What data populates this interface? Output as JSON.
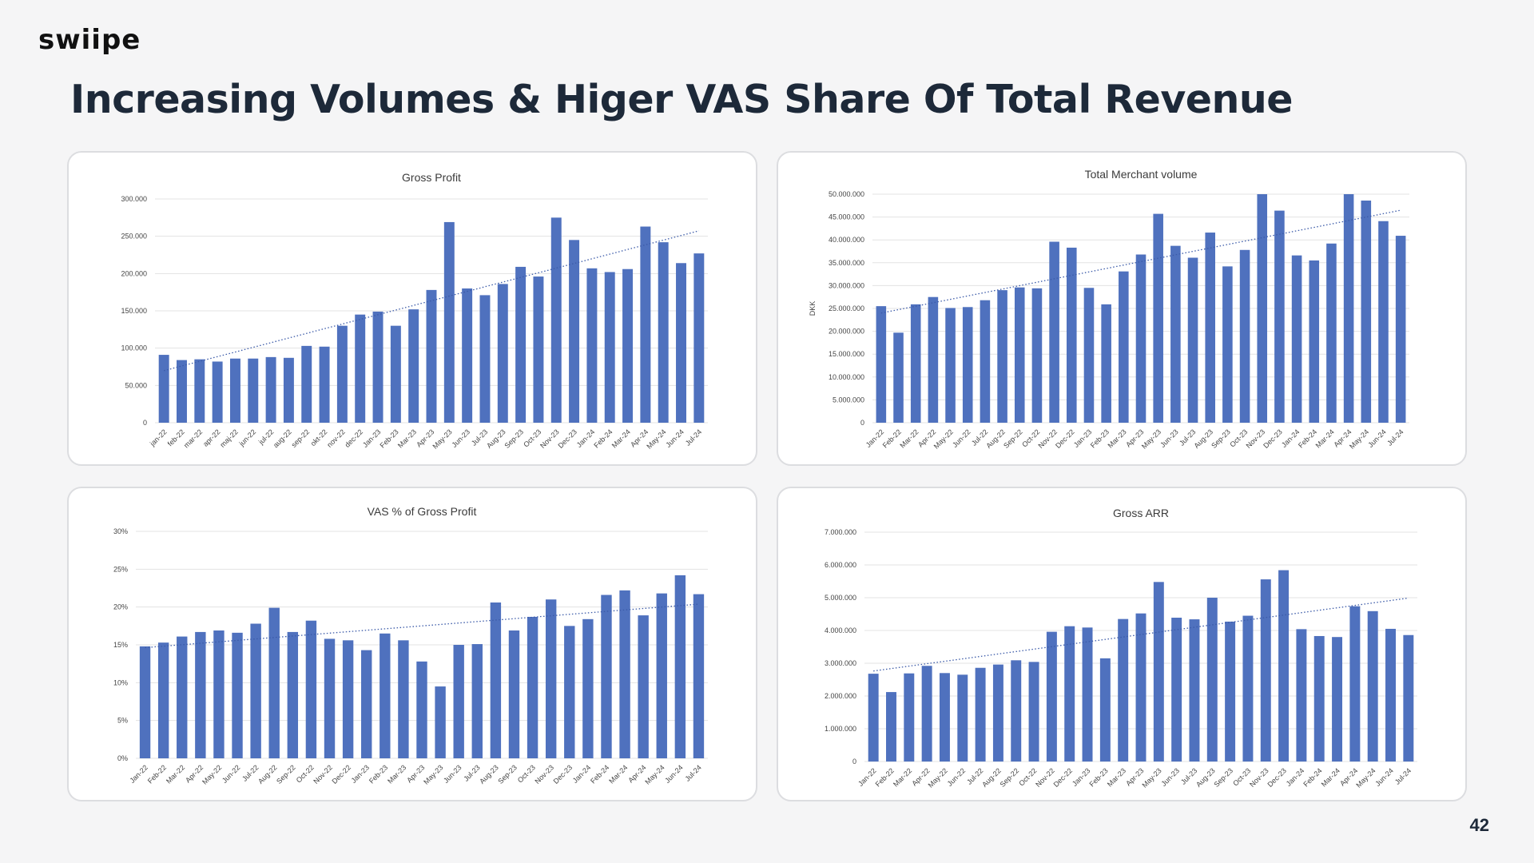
{
  "brand": {
    "logo_text": "swiipe"
  },
  "slide": {
    "title": "Increasing Volumes & Higer VAS Share Of Total Revenue",
    "page_number": "42"
  },
  "colors": {
    "bar": "#4f71be",
    "trend": "#3b5aa8",
    "grid": "#e3e3e3"
  },
  "chart_data": [
    {
      "type": "bar",
      "title": "Gross Profit",
      "ylabel": "",
      "trendline": true,
      "ylim": [
        0,
        300000
      ],
      "yticks": [
        "0",
        "50.000",
        "100.000",
        "150.000",
        "200.000",
        "250.000",
        "300.000"
      ],
      "categories": [
        "jan-22",
        "feb-22",
        "mar-22",
        "apr-22",
        "maj-22",
        "jun-22",
        "jul-22",
        "aug-22",
        "sep-22",
        "okt-22",
        "nov-22",
        "dec-22",
        "Jan-23",
        "Feb-23",
        "Mar-23",
        "Apr-23",
        "May-23",
        "Jun-23",
        "Jul-23",
        "Aug-23",
        "Sep-23",
        "Oct-23",
        "Nov-23",
        "Dec-23",
        "Jan-24",
        "Feb-24",
        "Mar-24",
        "Apr-24",
        "May-24",
        "Jun-24",
        "Jul-24"
      ],
      "values": [
        91000,
        84000,
        85000,
        82000,
        86000,
        86000,
        88000,
        87000,
        103000,
        102000,
        130000,
        145000,
        149000,
        130000,
        152000,
        178000,
        269000,
        180000,
        171000,
        186000,
        209000,
        196000,
        275000,
        245000,
        207000,
        202000,
        206000,
        263000,
        242000,
        214000,
        227000
      ]
    },
    {
      "type": "bar",
      "title": "Total Merchant volume",
      "ylabel": "DKK",
      "trendline": true,
      "ylim": [
        0,
        50000000
      ],
      "yticks": [
        "0",
        "5.000.000",
        "10.000.000",
        "15.000.000",
        "20.000.000",
        "25.000.000",
        "30.000.000",
        "35.000.000",
        "40.000.000",
        "45.000.000",
        "50.000.000"
      ],
      "categories": [
        "Jan-22",
        "Feb-22",
        "Mar-22",
        "Apr-22",
        "May-22",
        "Jun-22",
        "Jul-22",
        "Aug-22",
        "Sep-22",
        "Oct-22",
        "Nov-22",
        "Dec-22",
        "Jan-23",
        "Feb-23",
        "Mar-23",
        "Apr-23",
        "May-23",
        "Jun-23",
        "Jul-23",
        "Aug-23",
        "Sep-23",
        "Oct-23",
        "Nov-23",
        "Dec-23",
        "Jan-24",
        "Feb-24",
        "Mar-24",
        "Apr-24",
        "May-24",
        "Jun-24",
        "Jul-24"
      ],
      "values": [
        25500000,
        19700000,
        25900000,
        27500000,
        25100000,
        25300000,
        26800000,
        29000000,
        29600000,
        29400000,
        39600000,
        38300000,
        29500000,
        25900000,
        33100000,
        36800000,
        45700000,
        38700000,
        36100000,
        41600000,
        34200000,
        37800000,
        50000000,
        46400000,
        36600000,
        35500000,
        39200000,
        50000000,
        48600000,
        44100000,
        40900000
      ]
    },
    {
      "type": "bar",
      "title": "VAS % of Gross Profit",
      "ylabel": "",
      "trendline": true,
      "ylim": [
        0,
        30
      ],
      "yticks": [
        "0%",
        "5%",
        "10%",
        "15%",
        "20%",
        "25%",
        "30%"
      ],
      "categories": [
        "Jan-22",
        "Feb-22",
        "Mar-22",
        "Apr-22",
        "May-22",
        "Jun-22",
        "Jul-22",
        "Aug-22",
        "Sep-22",
        "Oct-22",
        "Nov-22",
        "Dec-22",
        "Jan-23",
        "Feb-23",
        "Mar-23",
        "Apr-23",
        "May-23",
        "Jun-23",
        "Jul-23",
        "Aug-23",
        "Sep-23",
        "Oct-23",
        "Nov-23",
        "Dec-23",
        "Jan-24",
        "Feb-24",
        "Mar-24",
        "Apr-24",
        "May-24",
        "Jun-24",
        "Jul-24"
      ],
      "values": [
        14.8,
        15.3,
        16.1,
        16.7,
        16.9,
        16.6,
        17.8,
        19.9,
        16.7,
        18.2,
        15.8,
        15.6,
        14.3,
        16.5,
        15.6,
        12.8,
        9.5,
        15.0,
        15.1,
        20.6,
        16.9,
        18.7,
        21.0,
        17.5,
        18.4,
        21.6,
        22.2,
        18.9,
        21.8,
        24.2,
        21.7
      ]
    },
    {
      "type": "bar",
      "title": "Gross ARR",
      "ylabel": "",
      "trendline": true,
      "ylim": [
        0,
        7000000
      ],
      "yticks": [
        "0",
        "1.000.000",
        "2.000.000",
        "3.000.000",
        "4.000.000",
        "5.000.000",
        "6.000.000",
        "7.000.000"
      ],
      "categories": [
        "Jan-22",
        "Feb-22",
        "Mar-22",
        "Apr-22",
        "May-22",
        "Jun-22",
        "Jul-22",
        "Aug-22",
        "Sep-22",
        "Oct-22",
        "Nov-22",
        "Dec-22",
        "Jan-23",
        "Feb-23",
        "Mar-23",
        "Apr-23",
        "May-23",
        "Jun-23",
        "Jul-23",
        "Aug-23",
        "Sep-23",
        "Oct-23",
        "Nov-23",
        "Dec-23",
        "Jan-24",
        "Feb-24",
        "Mar-24",
        "Apr-24",
        "May-24",
        "Jun-24",
        "Jul-24"
      ],
      "values": [
        2680000,
        2120000,
        2690000,
        2920000,
        2700000,
        2650000,
        2860000,
        2960000,
        3090000,
        3040000,
        3960000,
        4130000,
        4090000,
        3150000,
        4350000,
        4520000,
        5480000,
        4390000,
        4340000,
        5000000,
        4270000,
        4450000,
        5560000,
        5840000,
        4040000,
        3830000,
        3800000,
        4740000,
        4590000,
        4050000,
        3860000
      ]
    }
  ]
}
